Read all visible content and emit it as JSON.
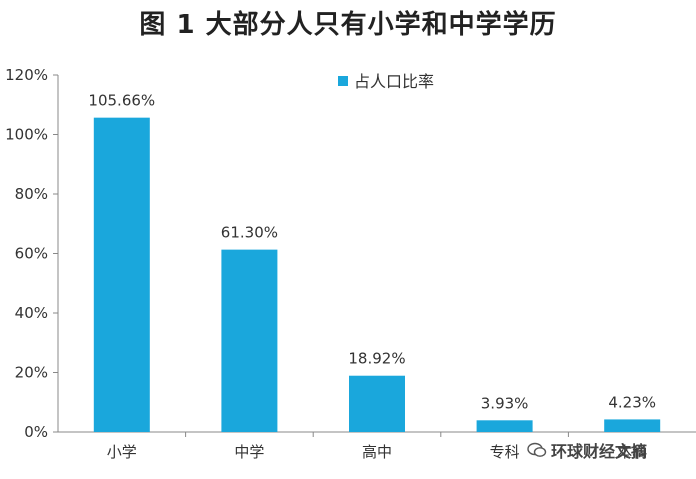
{
  "chart_data": {
    "type": "bar",
    "title": "图 1  大部分人只有小学和中学学历",
    "categories": [
      "小学",
      "中学",
      "高中",
      "专科",
      "本科"
    ],
    "series": [
      {
        "name": "占人口比率",
        "values": [
          105.66,
          61.3,
          18.92,
          3.93,
          4.23
        ]
      }
    ],
    "data_labels": [
      "105.66%",
      "61.30%",
      "18.92%",
      "3.93%",
      "4.23%"
    ],
    "y_ticks": [
      "0%",
      "20%",
      "40%",
      "60%",
      "80%",
      "100%",
      "120%"
    ],
    "ylim": [
      0,
      120
    ],
    "xlabel": "",
    "ylabel": "",
    "grid": false,
    "legend_position": "top-right",
    "bar_color": "#1AA7DC"
  },
  "watermark": {
    "text": "环球财经文摘",
    "icon": "wechat-icon"
  }
}
